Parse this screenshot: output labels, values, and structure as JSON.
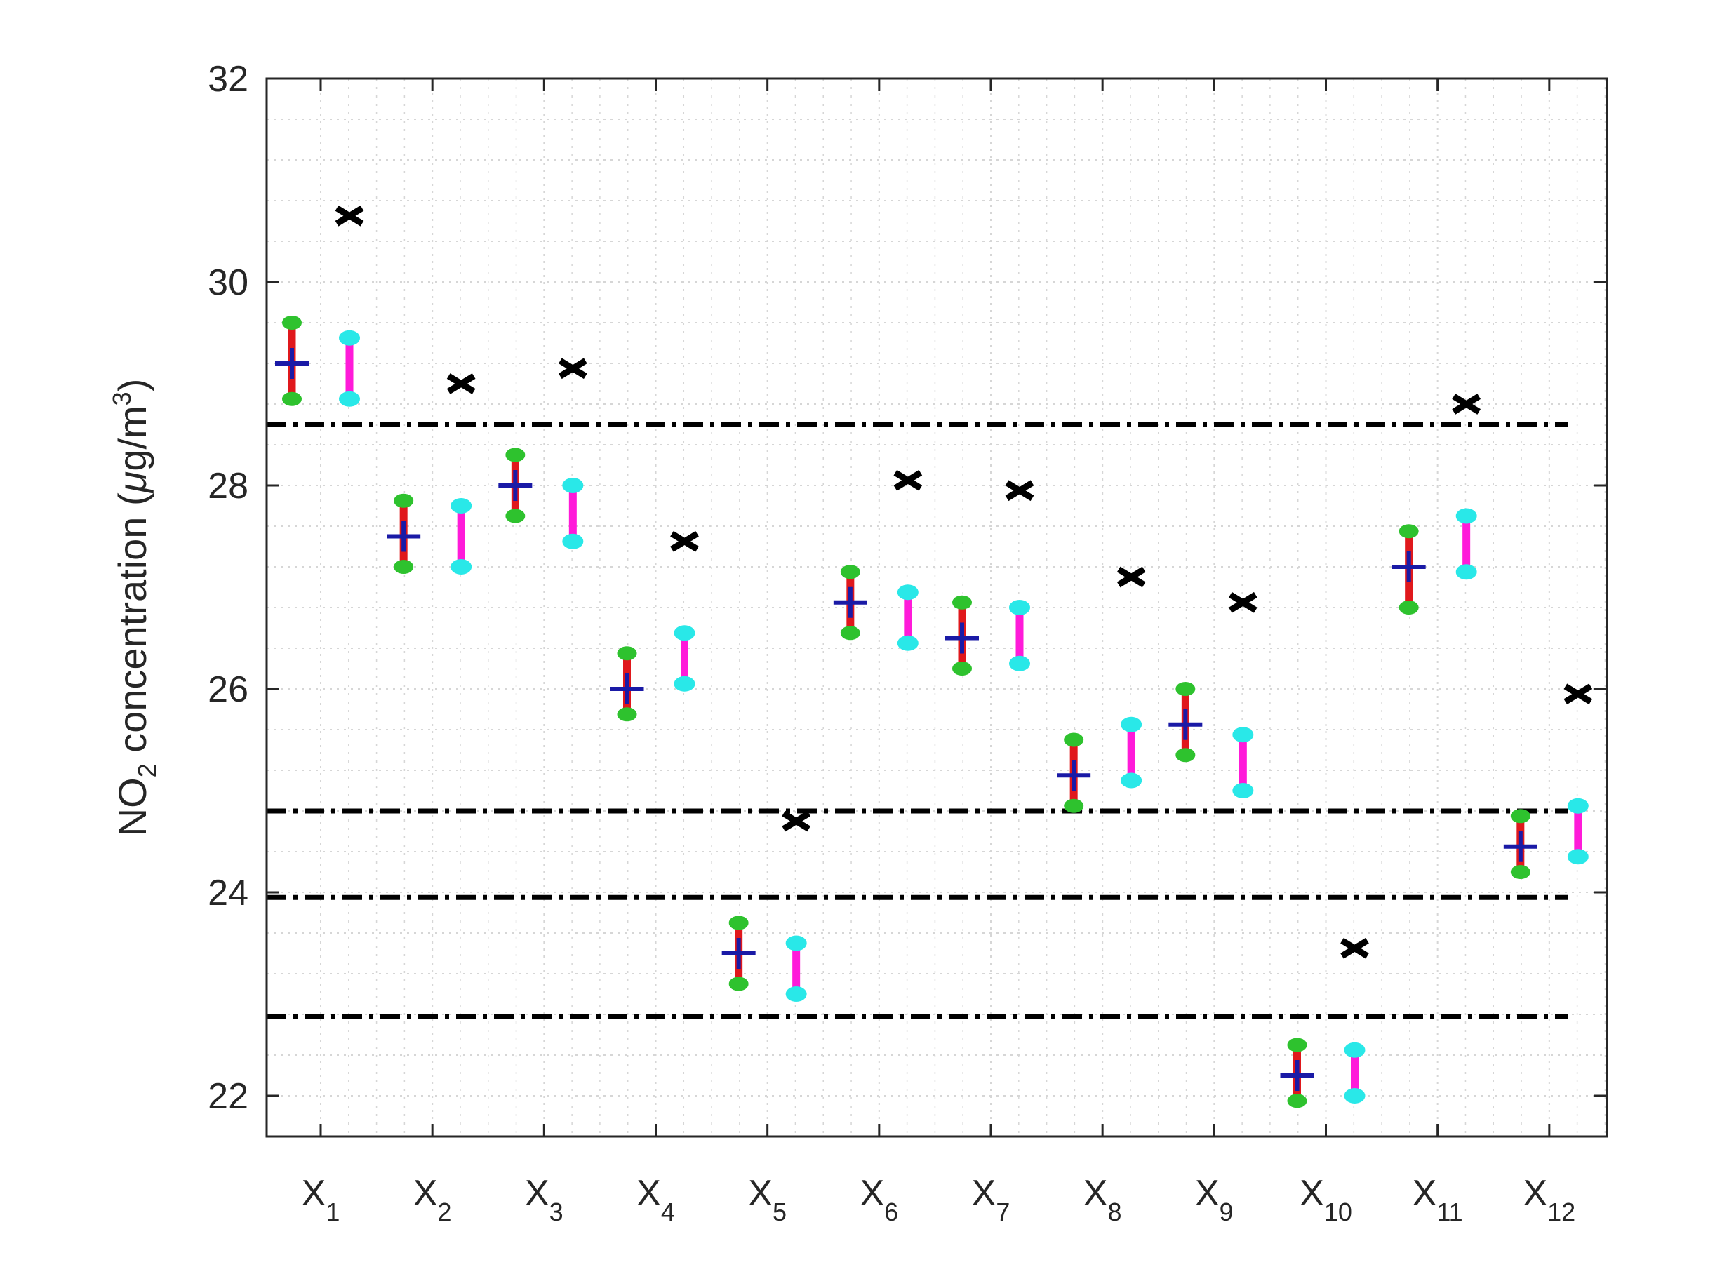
{
  "chart_data": {
    "type": "scatter",
    "ylabel_parts": {
      "pre": "NO",
      "sub": "2",
      "mid": " concentration (",
      "mu": "μ",
      "unit": "g/m",
      "sup": "3",
      "post": ")"
    },
    "ylim": [
      21.6,
      32
    ],
    "yticks": [
      22,
      24,
      26,
      28,
      30,
      32
    ],
    "grid": true,
    "categories": [
      {
        "base": "X",
        "sub": "1"
      },
      {
        "base": "X",
        "sub": "2"
      },
      {
        "base": "X",
        "sub": "3"
      },
      {
        "base": "X",
        "sub": "4"
      },
      {
        "base": "X",
        "sub": "5"
      },
      {
        "base": "X",
        "sub": "6"
      },
      {
        "base": "X",
        "sub": "7"
      },
      {
        "base": "X",
        "sub": "8"
      },
      {
        "base": "X",
        "sub": "9"
      },
      {
        "base": "X",
        "sub": "10"
      },
      {
        "base": "X",
        "sub": "11"
      },
      {
        "base": "X",
        "sub": "12"
      }
    ],
    "estimate_interval": {
      "center": [
        29.2,
        27.5,
        28.0,
        26.0,
        23.4,
        26.85,
        26.5,
        25.15,
        25.65,
        22.2,
        27.2,
        24.45
      ],
      "lower": [
        28.85,
        27.2,
        27.7,
        25.75,
        23.1,
        26.55,
        26.2,
        24.85,
        25.35,
        21.95,
        26.8,
        24.2
      ],
      "upper": [
        29.6,
        27.85,
        28.3,
        26.35,
        23.7,
        27.15,
        26.85,
        25.5,
        26.0,
        22.5,
        27.55,
        24.75
      ]
    },
    "second_interval": {
      "lower": [
        28.85,
        27.2,
        27.45,
        26.05,
        23.0,
        26.45,
        26.25,
        25.1,
        25.0,
        22.0,
        27.15,
        24.35
      ],
      "upper": [
        29.45,
        27.8,
        28.0,
        26.55,
        23.5,
        26.95,
        26.8,
        25.65,
        25.55,
        22.45,
        27.7,
        24.85
      ]
    },
    "x_markers": [
      30.65,
      29.0,
      29.15,
      27.45,
      24.7,
      28.05,
      27.95,
      27.1,
      26.85,
      23.45,
      28.8,
      25.95
    ],
    "reference_lines": [
      28.6,
      24.8,
      23.95,
      22.78
    ],
    "colors": {
      "center_marker": "#1a1aa6",
      "interval_line": "#e0181c",
      "interval_caps": "#2ec22e",
      "second_line": "#ff1ad9",
      "second_caps": "#29e8e8",
      "x_marker": "#000000",
      "reference_line": "#000000",
      "axis": "#262626",
      "grid": "#d6d6d6"
    }
  }
}
